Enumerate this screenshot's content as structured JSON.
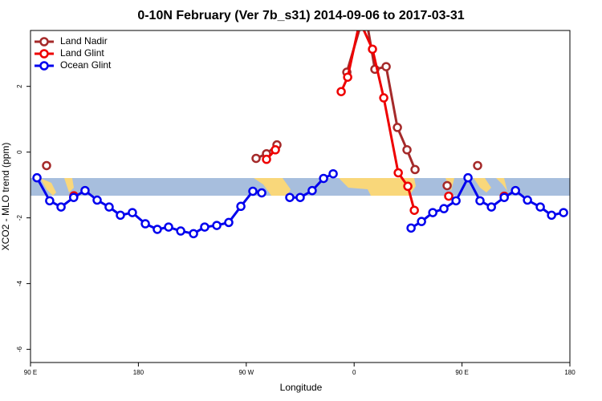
{
  "chart_data": {
    "type": "line",
    "title": "0-10N February (Ver 7b_s31)   2014-09-06 to 2017-03-31",
    "xlabel": "Longitude",
    "ylabel": "XCO2 - MLO trend (ppm)",
    "xlim": [
      90,
      540
    ],
    "ylim": [
      -6.4,
      3.7
    ],
    "xticks": [
      {
        "value": 90,
        "label": "90 E"
      },
      180,
      {
        "value": 270,
        "label": "90 W"
      },
      {
        "value": 360,
        "label": "0"
      },
      {
        "value": 450,
        "label": "90 E"
      },
      {
        "value": 540,
        "label": "180"
      }
    ],
    "yticks": [
      -6,
      -4,
      -2,
      0,
      2
    ],
    "legend": "top-left",
    "series": [
      {
        "name": "Land Nadir",
        "color": "#a52a2a",
        "x": [
          103.4,
          null,
          278.2,
          286.9,
          295.6,
          null,
          353.9,
          369,
          377.3,
          386.7,
          396.1,
          404.1,
          410.8,
          null,
          437.6,
          null,
          463
        ],
        "values": [
          -0.41,
          null,
          -0.19,
          -0.05,
          0.22,
          null,
          2.43,
          4.3,
          2.52,
          2.6,
          0.75,
          0.07,
          -0.53,
          null,
          -1.02,
          null,
          -0.41
        ]
      },
      {
        "name": "Land Glint",
        "color": "#ee0000",
        "x": [
          126.2,
          null,
          286.9,
          294.3,
          null,
          349.2,
          354.6,
          364.7,
          375.3,
          384.7,
          396.8,
          404.8,
          410.2,
          null,
          438.9,
          null,
          485.2
        ],
        "values": [
          -1.33,
          null,
          -0.22,
          0.07,
          null,
          1.84,
          2.28,
          3.98,
          3.13,
          1.65,
          -0.63,
          -1.04,
          -1.77,
          null,
          -1.34,
          null,
          -1.34
        ]
      },
      {
        "name": "Ocean Glint",
        "color": "#0000ee",
        "x": [
          95.4,
          106,
          115.5,
          126,
          135.5,
          145.6,
          155.6,
          165,
          175,
          185.8,
          195.8,
          205.2,
          215.3,
          226,
          235.3,
          245.4,
          255.4,
          265.5,
          275.5,
          282.9,
          null,
          306.3,
          315,
          325,
          334.5,
          342.5,
          null,
          407.5,
          416.2,
          425.6,
          434.9,
          445,
          455,
          465,
          474.5,
          485.2,
          494.6,
          504.6,
          515.3,
          524.7,
          534.7
        ],
        "values": [
          -0.78,
          -1.48,
          -1.67,
          -1.38,
          -1.17,
          -1.46,
          -1.67,
          -1.92,
          -1.84,
          -2.18,
          -2.35,
          -2.28,
          -2.4,
          -2.48,
          -2.28,
          -2.23,
          -2.14,
          -1.65,
          -1.19,
          -1.24,
          null,
          -1.38,
          -1.38,
          -1.17,
          -0.8,
          -0.66,
          null,
          -2.31,
          -2.11,
          -1.84,
          -1.72,
          -1.48,
          -0.78,
          -1.48,
          -1.67,
          -1.38,
          -1.17,
          -1.46,
          -1.67,
          -1.92,
          -1.84
        ]
      }
    ]
  }
}
